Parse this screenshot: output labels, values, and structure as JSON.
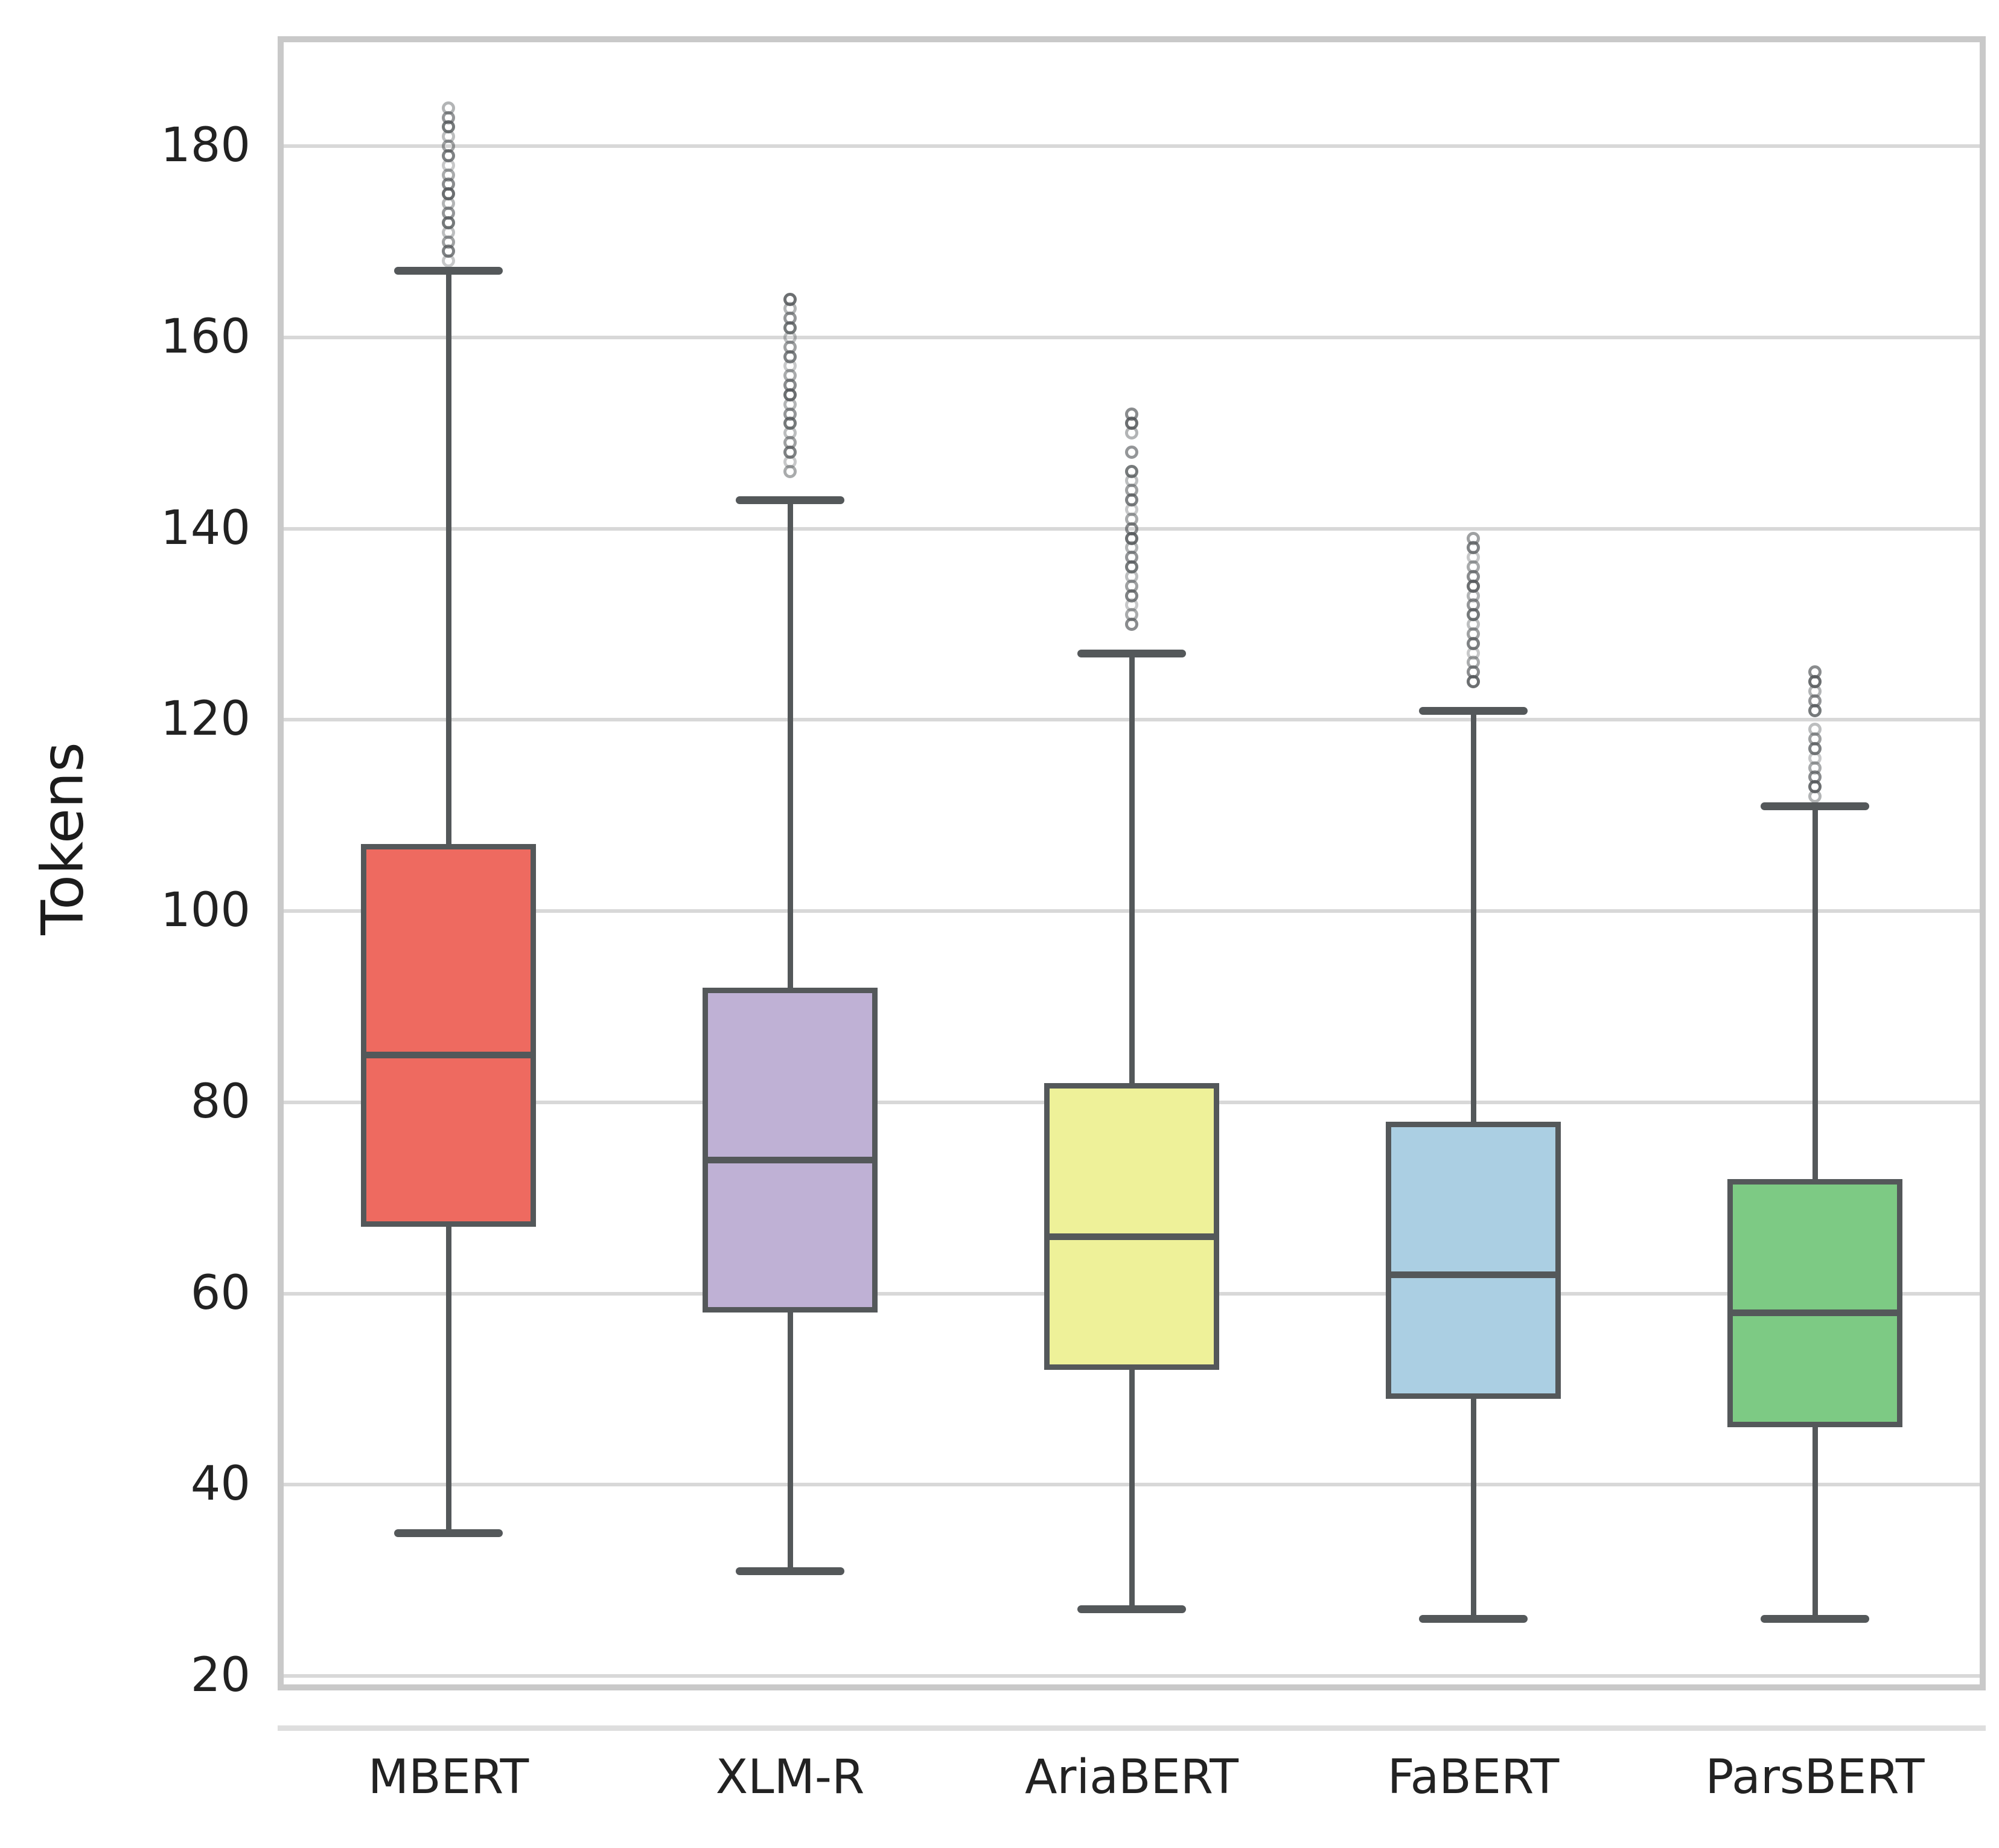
{
  "chart_data": {
    "type": "boxplot",
    "title": "",
    "xlabel": "",
    "ylabel": "Tokens",
    "categories": [
      "MBERT",
      "XLM-R",
      "AriaBERT",
      "FaBERT",
      "ParsBERT"
    ],
    "yticks": [
      20,
      40,
      60,
      80,
      100,
      120,
      140,
      160,
      180
    ],
    "ylim": [
      18.5,
      191.5
    ],
    "grid": "horizontal-only",
    "legend": "none",
    "series": [
      {
        "name": "MBERT",
        "color": "#ee6a60",
        "whisker_low": 35,
        "q1": 67,
        "median": 85,
        "q3": 107,
        "whisker_high": 167,
        "outliers": [
          168,
          169,
          170,
          171,
          172,
          173,
          174,
          175,
          176,
          177,
          178,
          179,
          180,
          181,
          182,
          183,
          184
        ]
      },
      {
        "name": "XLM-R",
        "color": "#bfb1d5",
        "whisker_low": 31,
        "q1": 58,
        "median": 74,
        "q3": 92,
        "whisker_high": 143,
        "outliers": [
          146,
          147,
          148,
          149,
          150,
          151,
          152,
          153,
          154,
          155,
          156,
          157,
          158,
          159,
          160,
          161,
          162,
          163,
          164
        ]
      },
      {
        "name": "AriaBERT",
        "color": "#eef199",
        "whisker_low": 27,
        "q1": 52,
        "median": 66,
        "q3": 82,
        "whisker_high": 127,
        "outliers": [
          130,
          131,
          132,
          133,
          134,
          135,
          136,
          137,
          138,
          139,
          140,
          141,
          142,
          143,
          144,
          145,
          146,
          148,
          150,
          151,
          152
        ]
      },
      {
        "name": "FaBERT",
        "color": "#abcfe3",
        "whisker_low": 26,
        "q1": 49,
        "median": 62,
        "q3": 78,
        "whisker_high": 121,
        "outliers": [
          124,
          125,
          126,
          127,
          128,
          129,
          130,
          131,
          132,
          133,
          134,
          135,
          136,
          137,
          138,
          139
        ]
      },
      {
        "name": "ParsBERT",
        "color": "#7dca84",
        "whisker_low": 26,
        "q1": 46,
        "median": 58,
        "q3": 72,
        "whisker_high": 111,
        "outliers": [
          112,
          113,
          114,
          115,
          116,
          117,
          118,
          119,
          121,
          122,
          123,
          124,
          125
        ]
      }
    ],
    "style_colors": {
      "box_edge": "#54585a",
      "whisker": "#54585a",
      "gridline": "#d8d8d8",
      "spine": "#c9c9c9",
      "tick_text": "#222222",
      "background": "#ffffff"
    }
  }
}
